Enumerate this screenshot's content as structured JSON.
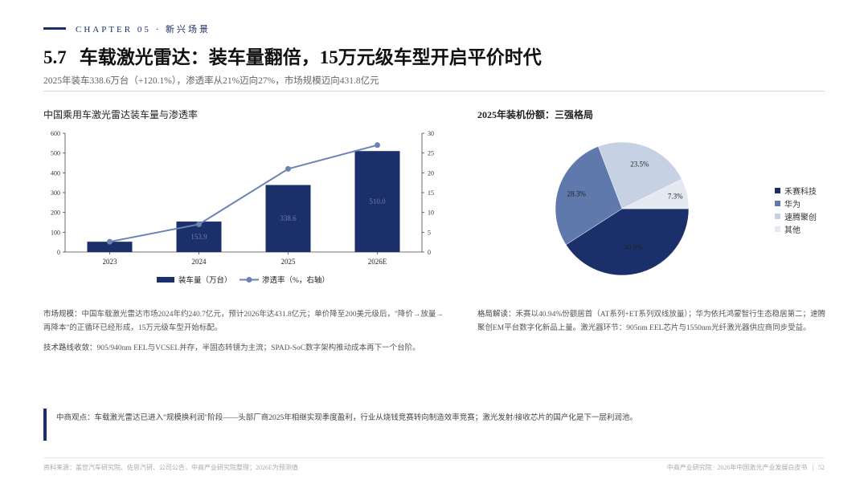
{
  "header": {
    "chapter": "CHAPTER 05 · 新兴场景",
    "section_number": "5.7",
    "title": "车载激光雷达：装车量翻倍，15万元级车型开启平价时代",
    "subtitle": "2025年装车338.6万台（+120.1%），渗透率从21%迈向27%，市场规模迈向431.8亿元"
  },
  "left_panel": {
    "title": "中国乘用车激光雷达装车量与渗透率",
    "para1_label": "市场规模：",
    "para1_text": "中国车载激光雷达市场2024年约240.7亿元，预计2026年达431.8亿元；单价降至200美元级后，\"降价→放量→再降本\"的正循环已经形成，15万元级车型开始标配。",
    "para2_label": "技术路线收敛：",
    "para2_text": "905/940nm EEL与VCSEL并存，半固态转镜为主流；SPAD-SoC数字架构推动成本再下一个台阶。"
  },
  "right_panel": {
    "title": "2025年装机份额：三强格局",
    "para_label": "格局解读：",
    "para_text": "禾赛以40.94%份额居首（AT系列+ET系列双线放量）；华为依托鸿蒙智行生态稳居第二；速腾聚创EM平台数字化新品上量。激光器环节：905nm EEL芯片与1550nm光纤激光器供应商同步受益。"
  },
  "quote": {
    "label": "中商观点：",
    "text": "车载激光雷达已进入\"规模换利润\"阶段——头部厂商2025年相继实现季度盈利，行业从烧钱竞赛转向制造效率竞赛；激光发射/接收芯片的国产化是下一层利润池。"
  },
  "footer": {
    "source": "资料来源：盖世汽车研究院、佐思汽研、公司公告，中商产业研究院整理；2026E为预测值",
    "publisher": "中商产业研究院 · 2026年中国激光产业发展白皮书",
    "separator": "|",
    "page": "52"
  },
  "colors": {
    "navy": "#1b2f6b",
    "line": "#6b82b3",
    "hesai": "#1b2f6b",
    "huawei": "#5f79ad",
    "robosense": "#c7d1e4",
    "other": "#e4e8f0"
  },
  "chart_data": [
    {
      "type": "bar",
      "categories": [
        "2023",
        "2024",
        "2025",
        "2026E"
      ],
      "series": [
        {
          "name": "装车量（万台）",
          "values": [
            52,
            153.9,
            338.6,
            510.0
          ],
          "axis": "left",
          "data_labels": [
            "",
            "153.9",
            "338.6",
            "510.0"
          ]
        },
        {
          "name": "渗透率（%，右轴）",
          "type": "line",
          "values": [
            2.6,
            7.0,
            21.0,
            27.0
          ],
          "axis": "right"
        }
      ],
      "ylim": [
        0,
        600
      ],
      "y_ticks": [
        "0",
        "100",
        "200",
        "300",
        "400",
        "500",
        "600"
      ],
      "y2lim": [
        0,
        30
      ],
      "y2_ticks": [
        "0",
        "5",
        "10",
        "15",
        "20",
        "25",
        "30"
      ],
      "legend_position": "bottom",
      "grid": false
    },
    {
      "type": "pie",
      "labels": [
        "禾赛科技",
        "华为",
        "速腾聚创",
        "其他"
      ],
      "values": [
        40.9,
        28.3,
        23.5,
        7.3
      ],
      "value_labels": [
        "40.9%",
        "28.3%",
        "23.5%",
        "7.3%"
      ],
      "legend_position": "right"
    }
  ]
}
